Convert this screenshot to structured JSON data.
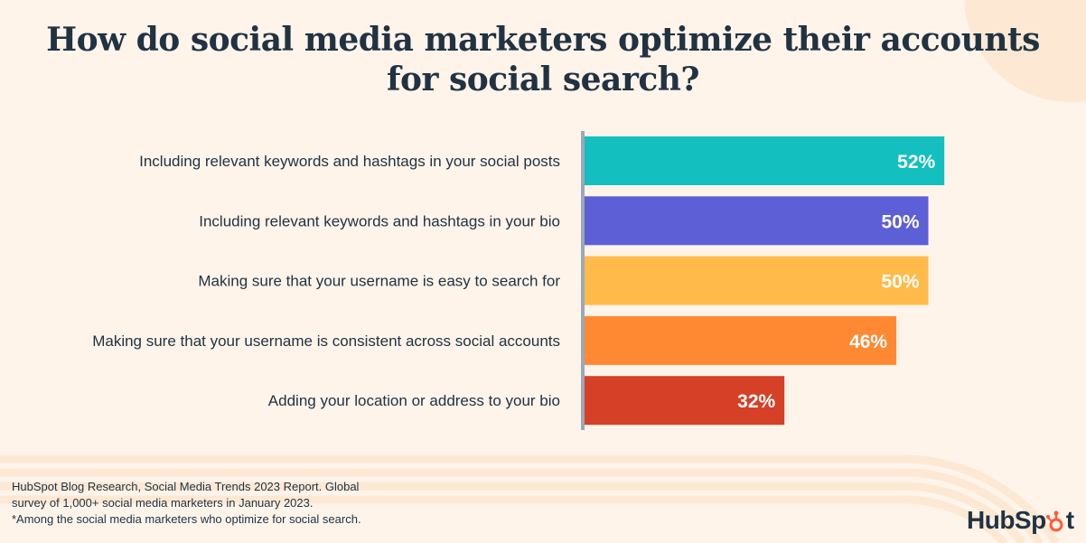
{
  "title": "How do social media marketers optimize their accounts for social search?",
  "chart_data": {
    "type": "bar",
    "orientation": "horizontal",
    "title": "How do social media marketers optimize their accounts for social search?",
    "categories": [
      "Including relevant keywords and hashtags in your social posts",
      "Including relevant keywords and hashtags in your bio",
      "Making sure that your username is easy to search for",
      "Making sure that your username is consistent across social accounts",
      "Adding your location or address to your bio"
    ],
    "values": [
      52,
      50,
      50,
      46,
      32
    ],
    "value_labels": [
      "52%",
      "50%",
      "50%",
      "46%",
      "32%"
    ],
    "colors": [
      "#13bfbf",
      "#5c5fd6",
      "#ffba4a",
      "#ff8933",
      "#d54027"
    ],
    "xlabel": "",
    "ylabel": "",
    "grid": false
  },
  "footnote": {
    "line1": "HubSpot Blog Research, Social Media Trends 2023 Report. Global",
    "line2": "survey of 1,000+ social media marketers in January 2023.",
    "line3": "*Among the social media marketers who optimize for social search."
  },
  "logo": "HubSpot"
}
